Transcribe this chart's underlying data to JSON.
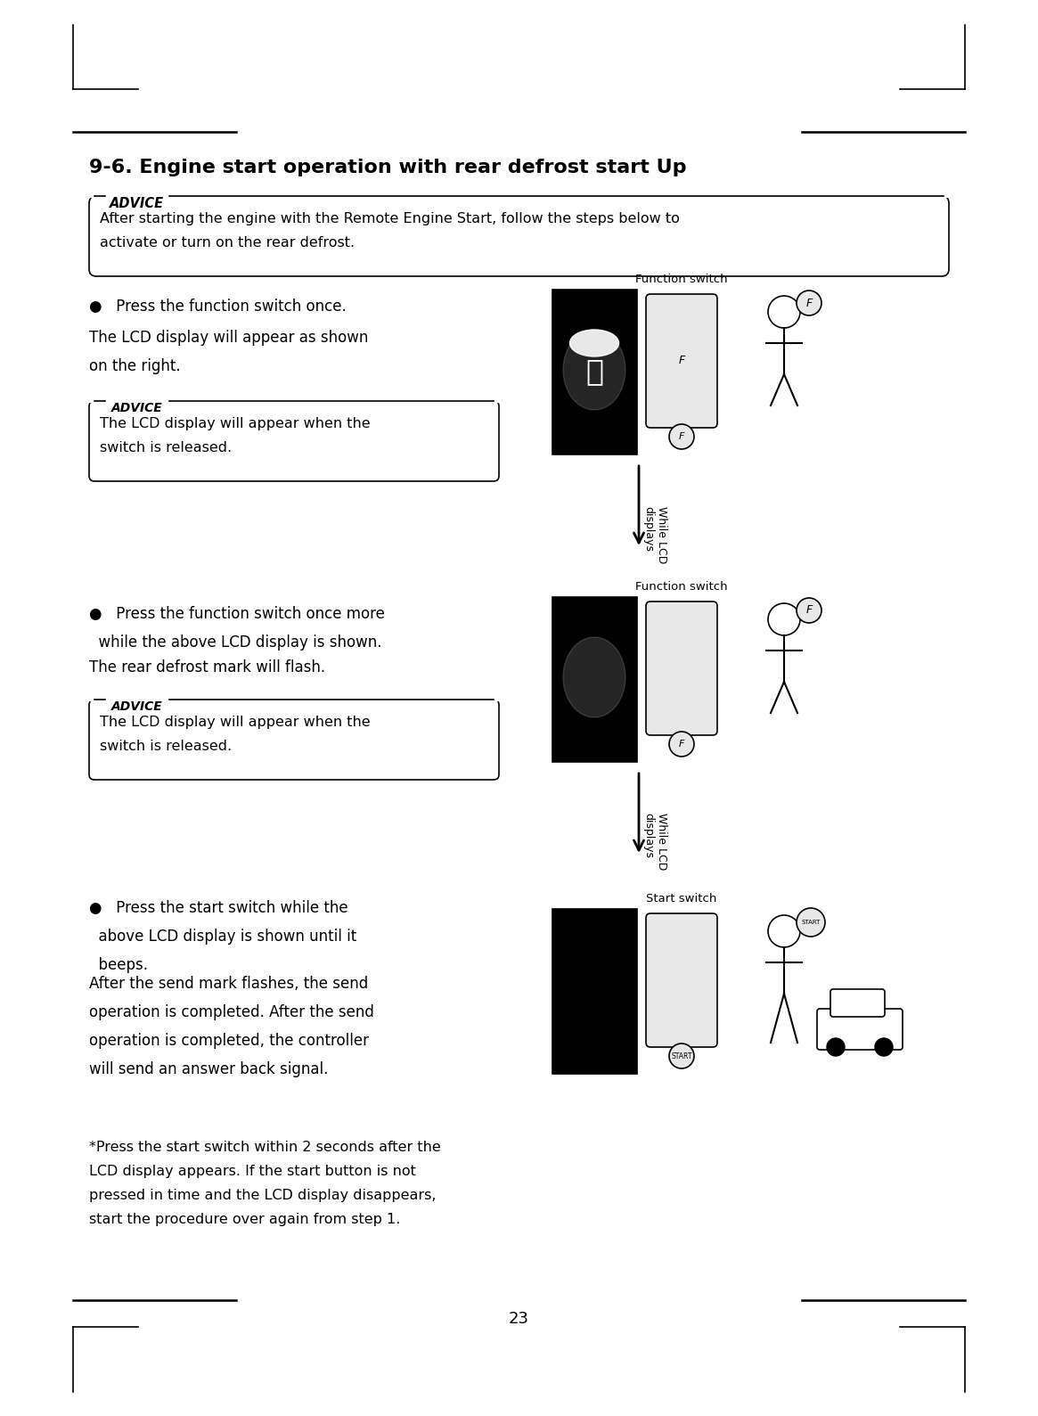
{
  "page_width": 11.65,
  "page_height": 15.89,
  "bg_color": "#ffffff",
  "title": "9-6. Engine start operation with rear defrost start Up",
  "advice_box_main": "After starting the engine with the Remote Engine Start, follow the steps below to\nactivate or turn on the rear defrost.",
  "advice_label": "ADVICE",
  "step1_bullet": "●   Press the function switch once.",
  "step1_text": "The LCD display will appear as shown\non the right.",
  "step1_advice": "The LCD display will appear when the\nswitch is released.",
  "step2_bullet": "●   Press the function switch once more\n  while the above LCD display is shown.",
  "step2_text": "The rear defrost mark will flash.",
  "step2_advice": "The LCD display will appear when the\nswitch is released.",
  "step3_bullet": "●   Press the start switch while the\n  above LCD display is shown until it\n  beeps.",
  "step3_text": "After the send mark flashes, the send\noperation is completed. After the send\noperation is completed, the controller\nwill send an answer back signal.",
  "step3_note": "*Press the start switch within 2 seconds after the\nLCD display appears. If the start button is not\npressed in time and the LCD display disappears,\nstart the procedure over again from step 1.",
  "func_switch_label": "Function switch",
  "start_switch_label": "Start switch",
  "while_lcd_label": "While LCD\ndisplays",
  "page_number": "23"
}
